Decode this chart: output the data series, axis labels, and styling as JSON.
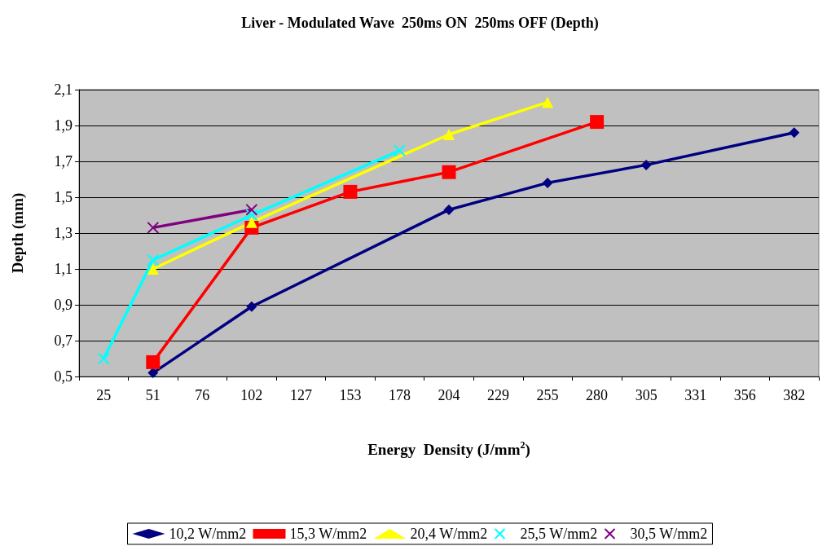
{
  "chart_data": {
    "type": "line",
    "title": "Liver - Modulated Wave  250ms ON  250ms OFF (Depth)",
    "xlabel": "Energy  Density (J/mm$^{2}$)",
    "ylabel": "Depth (mm)",
    "categories": [
      "25",
      "51",
      "76",
      "102",
      "127",
      "153",
      "178",
      "204",
      "229",
      "255",
      "280",
      "305",
      "331",
      "356",
      "382"
    ],
    "ylim": [
      0.5,
      2.1
    ],
    "yticks": [
      {
        "value": 0.5,
        "label": "0,5"
      },
      {
        "value": 0.7,
        "label": "0,7"
      },
      {
        "value": 0.9,
        "label": "0,9"
      },
      {
        "value": 1.1,
        "label": "1,1"
      },
      {
        "value": 1.3,
        "label": "1,3"
      },
      {
        "value": 1.5,
        "label": "1,5"
      },
      {
        "value": 1.7,
        "label": "1,7"
      },
      {
        "value": 1.9,
        "label": "1,9"
      },
      {
        "value": 2.1,
        "label": "2,1"
      }
    ],
    "grid": "y",
    "legend": "bottom",
    "series": [
      {
        "name": "10,2 W/mm2",
        "color": "#000080",
        "marker": "diamond",
        "values": [
          null,
          0.52,
          null,
          0.89,
          null,
          null,
          null,
          1.43,
          null,
          1.58,
          null,
          1.68,
          null,
          null,
          1.86
        ]
      },
      {
        "name": "15,3 W/mm2",
        "color": "#ff0000",
        "marker": "square",
        "values": [
          null,
          0.58,
          null,
          1.33,
          null,
          1.53,
          null,
          1.64,
          null,
          null,
          1.92,
          null,
          null,
          null,
          null
        ]
      },
      {
        "name": "20,4 W/mm2",
        "color": "#ffff00",
        "marker": "triangle",
        "values": [
          null,
          1.1,
          null,
          1.36,
          null,
          null,
          null,
          1.85,
          null,
          2.03,
          null,
          null,
          null,
          null,
          null
        ]
      },
      {
        "name": "25,5 W/mm2",
        "color": "#00ffff",
        "marker": "cross",
        "values": [
          0.6,
          1.15,
          null,
          1.4,
          null,
          null,
          1.76,
          null,
          null,
          null,
          null,
          null,
          null,
          null,
          null
        ]
      },
      {
        "name": "30,5 W/mm2",
        "color": "#800080",
        "marker": "cross",
        "values": [
          null,
          1.33,
          null,
          1.43,
          null,
          null,
          null,
          null,
          null,
          null,
          null,
          null,
          null,
          null,
          null
        ]
      }
    ]
  }
}
